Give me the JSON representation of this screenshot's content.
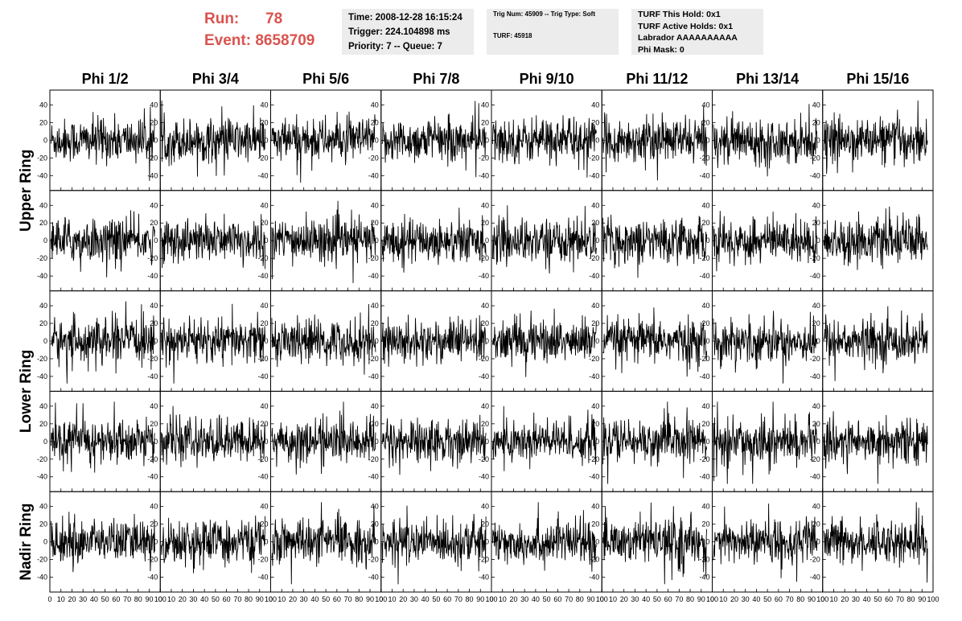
{
  "header": {
    "run_label": "Run:",
    "run_value": "78",
    "event_label": "Event:",
    "event_value": "8658709",
    "time_box": {
      "line1": "Time: 2008-12-28 16:15:24",
      "line2": "Trigger: 224.104898 ms",
      "line3": "Priority: 7 -- Queue: 7"
    },
    "trig_box": {
      "line1": "Trig Num: 45909 -- Trig Type: Soft",
      "line2": "TURF: 45918"
    },
    "turf_box": {
      "line1": "TURF This Hold: 0x1",
      "line2": "TURF Active Holds: 0x1",
      "line3": "Labrador AAAAAAAAAA",
      "line4": "Phi Mask: 0"
    },
    "run_color": "#d9534f",
    "box_color": "#ececec"
  },
  "chart_data": {
    "type": "line",
    "column_titles": [
      "Phi 1/2",
      "Phi 3/4",
      "Phi 5/6",
      "Phi 7/8",
      "Phi 9/10",
      "Phi 11/12",
      "Phi 13/14",
      "Phi 15/16"
    ],
    "row_groups": [
      {
        "label": "Upper Ring",
        "rows": 2
      },
      {
        "label": "Lower Ring",
        "rows": 2
      },
      {
        "label": "Nadir Ring",
        "rows": 1
      }
    ],
    "rows": 5,
    "cols": 8,
    "x_range": [
      0,
      100
    ],
    "y_range": [
      -55,
      55
    ],
    "y_ticks": [
      40,
      20,
      0,
      -20,
      -40
    ],
    "y_tick_labels": [
      "40",
      "20",
      "0",
      "-20",
      "-40"
    ],
    "x_ticks": [
      0,
      10,
      20,
      30,
      40,
      50,
      60,
      70,
      80,
      90,
      100
    ],
    "x_tick_labels": [
      "0",
      "10",
      "20",
      "30",
      "40",
      "50",
      "60",
      "70",
      "80",
      "90",
      "100"
    ],
    "samples_per_trace": 260,
    "trace_x_max": 95,
    "trace_amplitude": 22,
    "line_color": "#000000",
    "notes": "Each panel shows a noisy waveform around 0 with amplitude about ±20 to ±40; values are estimated noise, not individually recoverable."
  }
}
